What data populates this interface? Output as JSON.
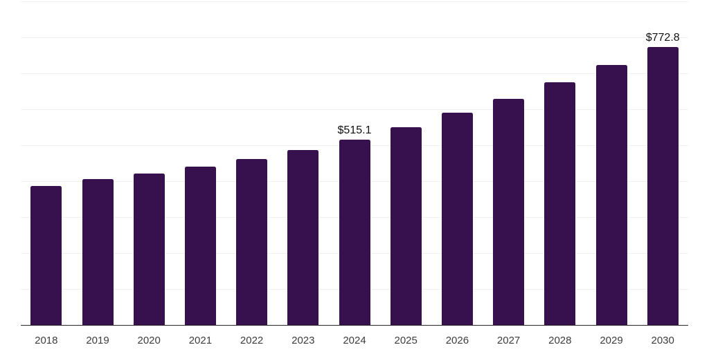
{
  "chart_data": {
    "type": "bar",
    "title": "",
    "xlabel": "",
    "ylabel": "",
    "categories": [
      "2018",
      "2019",
      "2020",
      "2021",
      "2022",
      "2023",
      "2024",
      "2025",
      "2026",
      "2027",
      "2028",
      "2029",
      "2030"
    ],
    "values": [
      387.0,
      405.6,
      421.6,
      440.1,
      461.5,
      487.0,
      515.1,
      550.2,
      589.8,
      628.4,
      675.0,
      724.0,
      772.8
    ],
    "annotations": [
      {
        "category": "2024",
        "text": "$515.1"
      },
      {
        "category": "2030",
        "text": "$772.8"
      }
    ],
    "ylim": [
      0,
      900
    ],
    "gridline_step": 100,
    "grid": "horizontal-only",
    "y_axis_labels_visible": false,
    "legend": "none",
    "colors": {
      "bar": "#36114d",
      "gridline": "#f0f0f0",
      "axis_line": "#262626",
      "tick_label": "#3c3c3c",
      "value_label": "#111111",
      "background": "#ffffff"
    }
  }
}
